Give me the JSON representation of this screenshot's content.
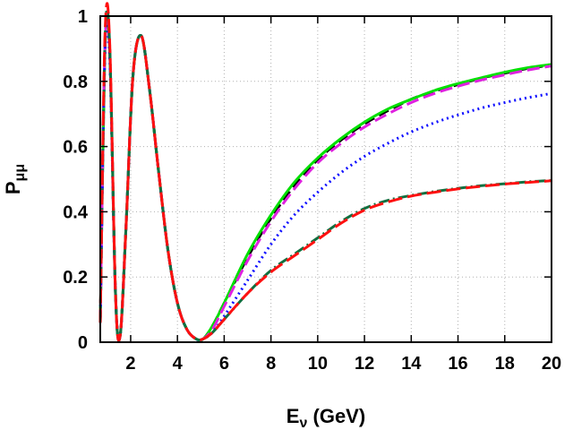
{
  "chart_data": {
    "type": "line",
    "title": "",
    "xlabel": {
      "main": "E",
      "sub": "ν",
      "suffix": " (GeV)"
    },
    "ylabel": {
      "main": "P",
      "sub": "μμ"
    },
    "xlim": [
      0.7,
      20
    ],
    "ylim": [
      0,
      1
    ],
    "xticks": [
      2,
      4,
      6,
      8,
      10,
      12,
      14,
      16,
      18,
      20
    ],
    "yticks": [
      0,
      0.2,
      0.4,
      0.6,
      0.8,
      1
    ],
    "xtick_labels": [
      "2",
      "4",
      "6",
      "8",
      "10",
      "12",
      "14",
      "16",
      "18",
      "20"
    ],
    "ytick_labels": [
      "0",
      "0.2",
      "0.4",
      "0.6",
      "0.8",
      "1"
    ],
    "grid": true,
    "legend": "none",
    "series": [
      {
        "name": "black dashed",
        "color": "#000000",
        "dash": "12 6",
        "width": 3,
        "x": [
          0.7,
          0.9,
          1.1,
          1.35,
          1.55,
          1.8,
          2.1,
          2.45,
          2.8,
          3.2,
          3.6,
          4.0,
          4.4,
          4.8,
          5.1,
          5.5,
          6,
          7,
          8,
          9,
          10,
          11,
          12,
          13,
          14,
          15,
          16,
          17,
          18,
          19,
          20
        ],
        "y": [
          0.06,
          0.9,
          0.9,
          0.15,
          0.02,
          0.35,
          0.82,
          0.94,
          0.78,
          0.52,
          0.28,
          0.12,
          0.04,
          0.01,
          0.01,
          0.05,
          0.12,
          0.26,
          0.38,
          0.48,
          0.56,
          0.62,
          0.67,
          0.71,
          0.745,
          0.77,
          0.79,
          0.81,
          0.825,
          0.84,
          0.85
        ]
      },
      {
        "name": "green solid",
        "color": "#00e000",
        "dash": "",
        "width": 3,
        "x": [
          0.7,
          0.9,
          1.1,
          1.35,
          1.55,
          1.8,
          2.1,
          2.45,
          2.8,
          3.2,
          3.6,
          4.0,
          4.4,
          4.8,
          5.1,
          5.5,
          6,
          7,
          8,
          9,
          10,
          11,
          12,
          13,
          14,
          15,
          16,
          17,
          18,
          19,
          20
        ],
        "y": [
          0.06,
          0.9,
          0.9,
          0.15,
          0.02,
          0.35,
          0.82,
          0.94,
          0.78,
          0.52,
          0.28,
          0.12,
          0.04,
          0.01,
          0.01,
          0.05,
          0.12,
          0.27,
          0.39,
          0.49,
          0.565,
          0.625,
          0.675,
          0.715,
          0.745,
          0.772,
          0.793,
          0.811,
          0.828,
          0.842,
          0.852
        ]
      },
      {
        "name": "magenta dashed",
        "color": "#e020e0",
        "dash": "14 6",
        "width": 3,
        "x": [
          0.7,
          0.9,
          1.1,
          1.35,
          1.55,
          1.8,
          2.1,
          2.45,
          2.8,
          3.2,
          3.6,
          4.0,
          4.4,
          4.8,
          5.1,
          5.5,
          6,
          7,
          8,
          9,
          10,
          11,
          12,
          13,
          14,
          15,
          16,
          17,
          18,
          19,
          20
        ],
        "y": [
          0.06,
          0.9,
          0.9,
          0.15,
          0.02,
          0.35,
          0.82,
          0.94,
          0.78,
          0.52,
          0.28,
          0.12,
          0.04,
          0.01,
          0.01,
          0.04,
          0.11,
          0.25,
          0.37,
          0.47,
          0.55,
          0.61,
          0.66,
          0.7,
          0.735,
          0.763,
          0.785,
          0.804,
          0.82,
          0.835,
          0.847
        ]
      },
      {
        "name": "blue dotted",
        "color": "#1010ff",
        "dash": "2 4",
        "width": 3,
        "x": [
          0.7,
          0.9,
          1.1,
          1.35,
          1.55,
          1.8,
          2.1,
          2.45,
          2.8,
          3.2,
          3.6,
          4.0,
          4.4,
          4.8,
          5.1,
          5.5,
          6,
          7,
          8,
          9,
          10,
          11,
          12,
          13,
          14,
          15,
          16,
          17,
          18,
          19,
          20
        ],
        "y": [
          0.06,
          0.88,
          0.88,
          0.15,
          0.02,
          0.35,
          0.82,
          0.94,
          0.78,
          0.52,
          0.28,
          0.12,
          0.04,
          0.01,
          0.01,
          0.03,
          0.08,
          0.19,
          0.3,
          0.39,
          0.46,
          0.52,
          0.57,
          0.61,
          0.645,
          0.673,
          0.697,
          0.718,
          0.735,
          0.75,
          0.763
        ]
      },
      {
        "name": "dark green dash-dot",
        "color": "#107040",
        "dash": "12 4 2 4",
        "width": 3,
        "x": [
          0.7,
          0.9,
          1.1,
          1.35,
          1.55,
          1.8,
          2.1,
          2.45,
          2.8,
          3.2,
          3.6,
          4.0,
          4.4,
          4.8,
          5.1,
          5.5,
          6,
          7,
          8,
          9,
          10,
          11,
          12,
          13,
          14,
          15,
          16,
          17,
          18,
          19,
          20
        ],
        "y": [
          0.06,
          0.92,
          0.92,
          0.15,
          0.02,
          0.35,
          0.82,
          0.94,
          0.78,
          0.52,
          0.28,
          0.12,
          0.04,
          0.01,
          0.01,
          0.03,
          0.07,
          0.15,
          0.22,
          0.27,
          0.32,
          0.37,
          0.41,
          0.435,
          0.45,
          0.462,
          0.472,
          0.48,
          0.486,
          0.492,
          0.496
        ]
      },
      {
        "name": "red dashed",
        "color": "#ff1010",
        "dash": "16 6",
        "width": 3,
        "x": [
          0.7,
          0.9,
          1.1,
          1.35,
          1.55,
          1.8,
          2.1,
          2.45,
          2.8,
          3.2,
          3.6,
          4.0,
          4.4,
          4.8,
          5.1,
          5.5,
          6,
          7,
          8,
          9,
          10,
          11,
          12,
          13,
          14,
          15,
          16,
          17,
          18,
          19,
          20
        ],
        "y": [
          0.06,
          0.94,
          0.93,
          0.15,
          0.02,
          0.35,
          0.82,
          0.94,
          0.78,
          0.52,
          0.28,
          0.12,
          0.04,
          0.01,
          0.01,
          0.03,
          0.07,
          0.15,
          0.215,
          0.265,
          0.315,
          0.365,
          0.405,
          0.43,
          0.448,
          0.46,
          0.47,
          0.478,
          0.485,
          0.49,
          0.495
        ]
      }
    ]
  }
}
